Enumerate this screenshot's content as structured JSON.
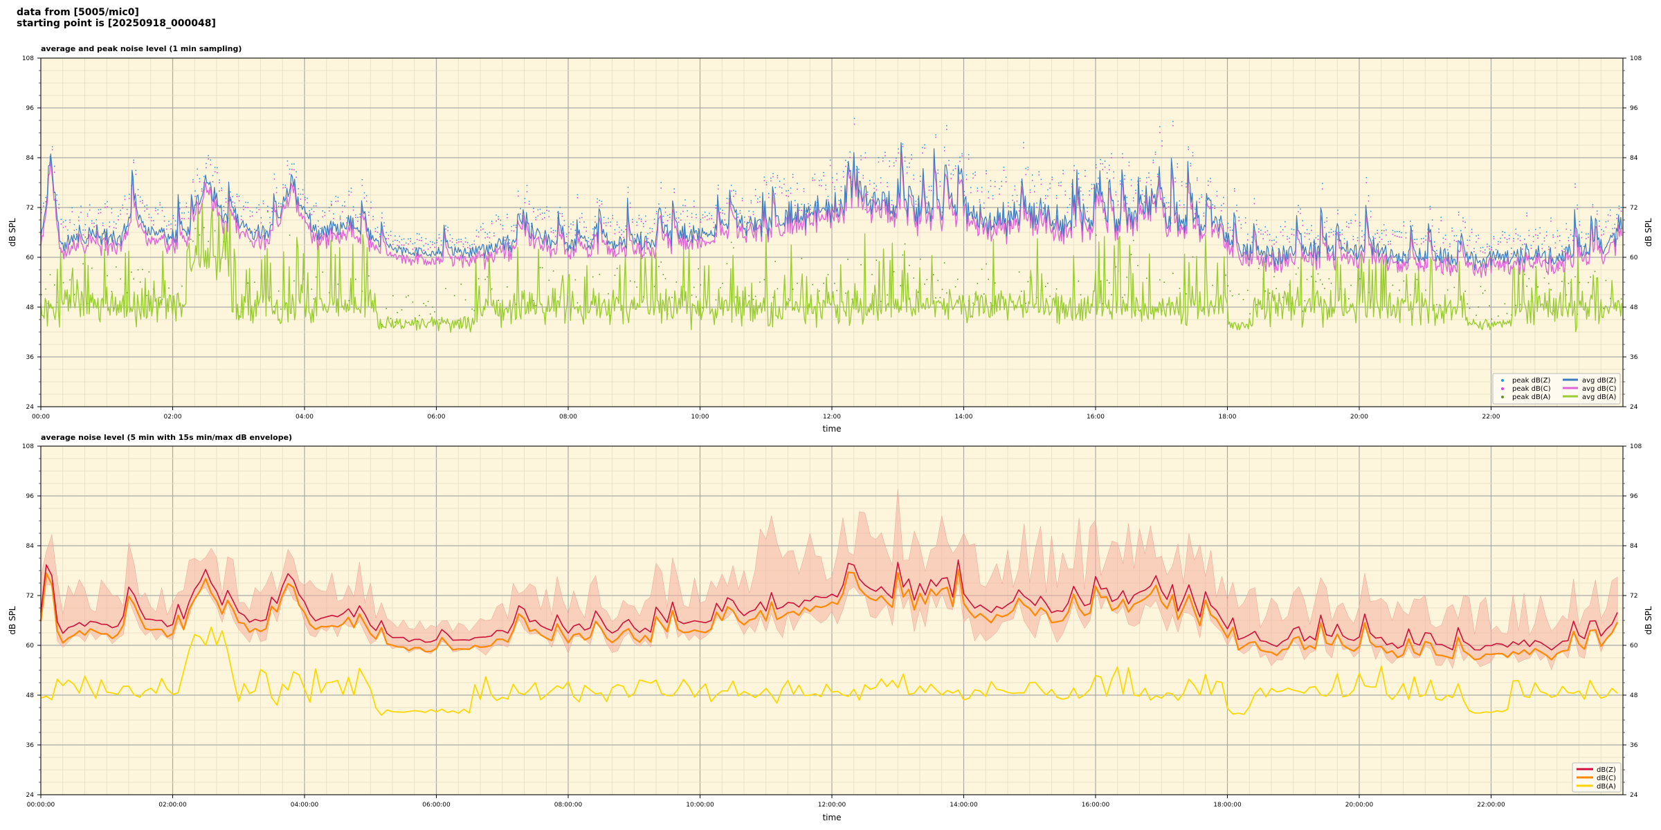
{
  "header": {
    "line1": "data from [5005/mic0]",
    "line2": "starting point is [20250918_000048]"
  },
  "chart_data": [
    {
      "type": "line",
      "title": "average and peak noise level (1 min sampling)",
      "xlabel": "time",
      "ylabel": "dB SPL",
      "xlim_hours": [
        0,
        24
      ],
      "ylim": [
        24,
        108
      ],
      "yticks": [
        "24",
        "36",
        "48",
        "60",
        "72",
        "84",
        "96",
        "108"
      ],
      "xtick_labels": [
        "00:00",
        "02:00",
        "04:00",
        "06:00",
        "08:00",
        "10:00",
        "12:00",
        "14:00",
        "16:00",
        "18:00",
        "20:00",
        "22:00"
      ],
      "grid": true,
      "legend_position": "bottom-right",
      "background": "#fdf6dc",
      "series": [
        {
          "name": "peak dB(Z)",
          "kind": "scatter",
          "color": "#1f9be0"
        },
        {
          "name": "peak dB(C)",
          "kind": "scatter",
          "color": "#e040e0"
        },
        {
          "name": "peak dB(A)",
          "kind": "scatter",
          "color": "#5a9a2a"
        },
        {
          "name": "avg dB(Z)",
          "kind": "line",
          "color": "#3a7cc0"
        },
        {
          "name": "avg dB(C)",
          "kind": "line",
          "color": "#e066d8"
        },
        {
          "name": "avg dB(A)",
          "kind": "line",
          "color": "#9acd32"
        }
      ],
      "profile_hours": [
        0,
        0.15,
        0.3,
        0.5,
        0.8,
        1.2,
        1.4,
        1.6,
        2.0,
        2.3,
        2.5,
        2.8,
        3.2,
        3.6,
        3.8,
        4.2,
        4.6,
        4.9,
        5.2,
        6.0,
        6.5,
        7.0,
        7.5,
        8.0,
        9.0,
        10.0,
        11.0,
        12.0,
        12.5,
        13.0,
        14.0,
        15.0,
        16.0,
        17.0,
        17.9,
        18.1,
        19.0,
        20.0,
        21.0,
        21.4,
        21.8,
        22.0,
        22.5,
        23.0,
        23.7,
        24.0
      ],
      "profile_avg_dBZ": [
        64,
        80,
        63,
        65,
        66,
        64,
        72,
        66,
        65,
        67,
        78,
        70,
        66,
        67,
        78,
        65,
        68,
        66,
        62,
        61,
        61,
        63,
        66,
        63,
        63,
        66,
        68,
        72,
        76,
        71,
        70,
        70,
        68,
        68,
        68,
        61,
        61,
        62,
        60,
        60,
        59,
        60,
        61,
        60,
        61,
        69
      ]
    },
    {
      "type": "area",
      "title": "average noise level (5 min with 15s min/max dB envelope)",
      "xlabel": "time",
      "ylabel": "dB SPL",
      "xlim_hours": [
        0,
        24
      ],
      "ylim": [
        24,
        108
      ],
      "yticks": [
        "24",
        "36",
        "48",
        "60",
        "72",
        "84",
        "96",
        "108"
      ],
      "xtick_labels": [
        "00:00:00",
        "02:00:00",
        "04:00:00",
        "06:00:00",
        "08:00:00",
        "10:00:00",
        "12:00:00",
        "14:00:00",
        "16:00:00",
        "18:00:00",
        "20:00:00",
        "22:00:00"
      ],
      "grid": true,
      "legend_position": "bottom-right",
      "background": "#fdf6dc",
      "envelope_color": "#f4b0a0",
      "series": [
        {
          "name": "dB(Z)",
          "color": "#d0103a"
        },
        {
          "name": "dB(C)",
          "color": "#ff8a00"
        },
        {
          "name": "dB(A)",
          "color": "#ffd700"
        }
      ]
    }
  ]
}
